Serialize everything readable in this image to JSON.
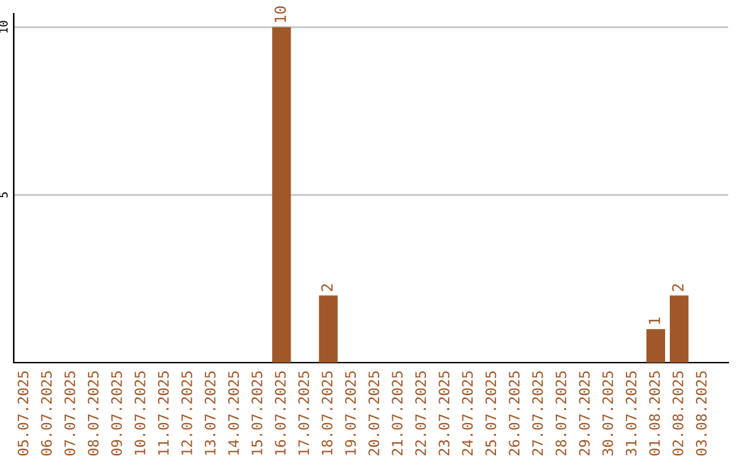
{
  "chart_data": {
    "type": "bar",
    "categories": [
      "05.07.2025",
      "06.07.2025",
      "07.07.2025",
      "08.07.2025",
      "09.07.2025",
      "10.07.2025",
      "11.07.2025",
      "12.07.2025",
      "13.07.2025",
      "14.07.2025",
      "15.07.2025",
      "16.07.2025",
      "17.07.2025",
      "18.07.2025",
      "19.07.2025",
      "20.07.2025",
      "21.07.2025",
      "22.07.2025",
      "23.07.2025",
      "24.07.2025",
      "25.07.2025",
      "26.07.2025",
      "27.07.2025",
      "28.07.2025",
      "29.07.2025",
      "30.07.2025",
      "31.07.2025",
      "01.08.2025",
      "02.08.2025",
      "03.08.2025"
    ],
    "values": [
      0,
      0,
      0,
      0,
      0,
      0,
      0,
      0,
      0,
      0,
      0,
      10,
      0,
      2,
      0,
      0,
      0,
      0,
      0,
      0,
      0,
      0,
      0,
      0,
      0,
      0,
      0,
      1,
      2,
      0
    ],
    "value_labels": [
      null,
      null,
      null,
      null,
      null,
      null,
      null,
      null,
      null,
      null,
      null,
      "10",
      null,
      "2",
      null,
      null,
      null,
      null,
      null,
      null,
      null,
      null,
      null,
      null,
      null,
      null,
      null,
      "1",
      "2",
      null
    ],
    "color": "#a0582a",
    "ylim": [
      0,
      10.4
    ],
    "yticks": [
      5,
      10
    ],
    "grid": "y"
  }
}
